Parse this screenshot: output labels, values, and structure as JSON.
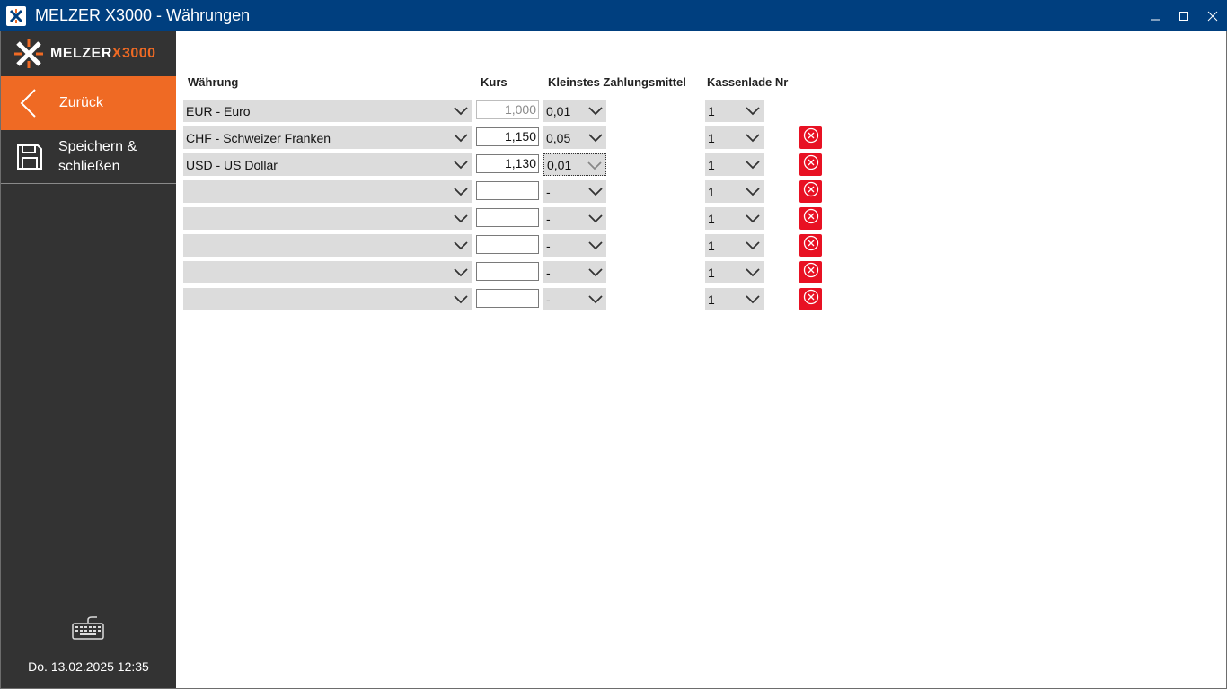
{
  "window": {
    "title": "MELZER X3000 - Währungen"
  },
  "sidebar": {
    "logo_word": "MELZER",
    "logo_x": "X3000",
    "back_label": "Zurück",
    "save_label": "Speichern & schließen",
    "datetime": "Do. 13.02.2025 12:35"
  },
  "table": {
    "headers": {
      "currency": "Währung",
      "rate": "Kurs",
      "smallest": "Kleinstes Zahlungsmittel",
      "drawer": "Kassenlade Nr"
    },
    "rows": [
      {
        "currency": "EUR - Euro",
        "rate": "1,000",
        "smallest": "0,01",
        "drawer": "1"
      },
      {
        "currency": "CHF - Schweizer Franken",
        "rate": "1,150",
        "smallest": "0,05",
        "drawer": "1"
      },
      {
        "currency": "USD - US Dollar",
        "rate": "1,130",
        "smallest": "0,01",
        "drawer": "1"
      },
      {
        "currency": "",
        "rate": "",
        "smallest": "-",
        "drawer": "1"
      },
      {
        "currency": "",
        "rate": "",
        "smallest": "-",
        "drawer": "1"
      },
      {
        "currency": "",
        "rate": "",
        "smallest": "-",
        "drawer": "1"
      },
      {
        "currency": "",
        "rate": "",
        "smallest": "-",
        "drawer": "1"
      },
      {
        "currency": "",
        "rate": "",
        "smallest": "-",
        "drawer": "1"
      }
    ]
  },
  "colors": {
    "titlebar": "#003f7f",
    "accent": "#ef6a24",
    "sidebar": "#333333",
    "delete": "#e81123"
  }
}
